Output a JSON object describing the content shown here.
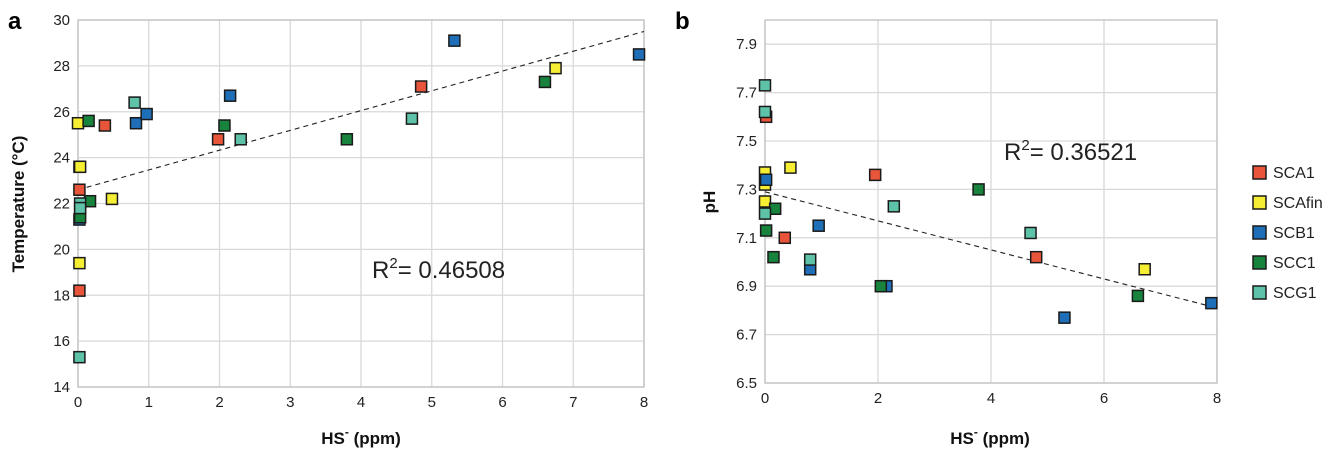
{
  "chart_data": [
    {
      "type": "scatter",
      "panel_label": "a",
      "xlabel_main": "HS",
      "xlabel_sup": "-",
      "xlabel_unit": " (ppm)",
      "ylabel": "Temperature (°C)",
      "xlim": [
        0,
        8
      ],
      "ylim": [
        14,
        30
      ],
      "xticks": [
        0,
        1,
        2,
        3,
        4,
        5,
        6,
        7,
        8
      ],
      "yticks": [
        14,
        16,
        18,
        20,
        22,
        24,
        26,
        28,
        30
      ],
      "grid": true,
      "r2_main": "R",
      "r2_sup": "2",
      "r2_value": "= 0.46508",
      "trendline": {
        "x": [
          0,
          8
        ],
        "y": [
          22.6,
          29.5
        ]
      },
      "series": [
        {
          "name": "SCA1",
          "points": [
            [
              0.02,
              22.6
            ],
            [
              0.02,
              18.2
            ],
            [
              0.38,
              25.4
            ],
            [
              1.98,
              24.8
            ],
            [
              4.85,
              27.1
            ]
          ]
        },
        {
          "name": "SCAfin",
          "points": [
            [
              0.0,
              25.5
            ],
            [
              0.02,
              23.6
            ],
            [
              0.03,
              23.6
            ],
            [
              0.02,
              19.4
            ],
            [
              0.48,
              22.2
            ],
            [
              6.75,
              27.9
            ]
          ]
        },
        {
          "name": "SCB1",
          "points": [
            [
              0.02,
              21.3
            ],
            [
              0.82,
              25.5
            ],
            [
              0.97,
              25.9
            ],
            [
              2.15,
              26.7
            ],
            [
              5.32,
              29.1
            ],
            [
              7.93,
              28.5
            ]
          ]
        },
        {
          "name": "SCC1",
          "points": [
            [
              0.03,
              21.4
            ],
            [
              0.15,
              25.6
            ],
            [
              0.17,
              22.1
            ],
            [
              2.07,
              25.4
            ],
            [
              3.8,
              24.8
            ],
            [
              6.6,
              27.3
            ]
          ]
        },
        {
          "name": "SCG1",
          "points": [
            [
              0.02,
              15.3
            ],
            [
              0.03,
              22.0
            ],
            [
              0.03,
              21.8
            ],
            [
              0.8,
              26.4
            ],
            [
              2.3,
              24.8
            ],
            [
              4.72,
              25.7
            ]
          ]
        }
      ]
    },
    {
      "type": "scatter",
      "panel_label": "b",
      "xlabel_main": "HS",
      "xlabel_sup": "-",
      "xlabel_unit": " (ppm)",
      "ylabel": "pH",
      "xlim": [
        0,
        8
      ],
      "ylim": [
        6.5,
        8.0
      ],
      "xticks": [
        0,
        2,
        4,
        6,
        8
      ],
      "yticks": [
        6.5,
        6.7,
        6.9,
        7.1,
        7.3,
        7.5,
        7.7,
        7.9
      ],
      "ytick_labels": [
        "6.5",
        "6.7",
        "6.9",
        "7.1",
        "7.3",
        "7.5",
        "7.7",
        "7.9"
      ],
      "grid": true,
      "legend_position": "right",
      "r2_main": "R",
      "r2_sup": "2",
      "r2_value": "= 0.36521",
      "trendline": {
        "x": [
          0,
          8
        ],
        "y": [
          7.29,
          6.81
        ]
      },
      "series": [
        {
          "name": "SCA1",
          "points": [
            [
              0.02,
              7.6
            ],
            [
              0.35,
              7.1
            ],
            [
              1.95,
              7.36
            ],
            [
              4.8,
              7.02
            ]
          ]
        },
        {
          "name": "SCAfin",
          "points": [
            [
              0.0,
              7.37
            ],
            [
              0.0,
              7.32
            ],
            [
              0.0,
              7.25
            ],
            [
              0.45,
              7.39
            ],
            [
              6.72,
              6.97
            ]
          ]
        },
        {
          "name": "SCB1",
          "points": [
            [
              0.02,
              7.34
            ],
            [
              0.8,
              6.97
            ],
            [
              0.95,
              7.15
            ],
            [
              2.15,
              6.9
            ],
            [
              5.3,
              6.77
            ],
            [
              7.9,
              6.83
            ]
          ]
        },
        {
          "name": "SCC1",
          "points": [
            [
              0.02,
              7.13
            ],
            [
              0.15,
              7.02
            ],
            [
              0.18,
              7.22
            ],
            [
              2.05,
              6.9
            ],
            [
              3.78,
              7.3
            ],
            [
              6.6,
              6.86
            ]
          ]
        },
        {
          "name": "SCG1",
          "points": [
            [
              0.0,
              7.73
            ],
            [
              0.0,
              7.62
            ],
            [
              0.0,
              7.2
            ],
            [
              0.8,
              7.01
            ],
            [
              2.28,
              7.23
            ],
            [
              4.7,
              7.12
            ]
          ]
        }
      ]
    }
  ],
  "legend": [
    {
      "name": "SCA1",
      "color": "#e8553a"
    },
    {
      "name": "SCAfin",
      "color": "#f5ee33"
    },
    {
      "name": "SCB1",
      "color": "#1f6fb8"
    },
    {
      "name": "SCC1",
      "color": "#17833c"
    },
    {
      "name": "SCG1",
      "color": "#5dc2a8"
    }
  ]
}
